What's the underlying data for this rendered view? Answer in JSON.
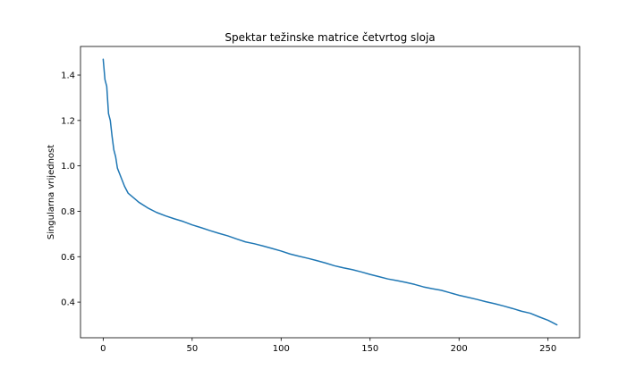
{
  "chart_data": {
    "type": "line",
    "title": "Spektar težinske matrice četvrtog sloja",
    "xlabel": "",
    "ylabel": "Singularna vrijednost",
    "xlim": [
      -12.75,
      267.75
    ],
    "ylim": [
      0.243,
      1.526
    ],
    "xticks": [
      0,
      50,
      100,
      150,
      200,
      250
    ],
    "yticks": [
      0.4,
      0.6,
      0.8,
      1.0,
      1.2,
      1.4
    ],
    "ytick_labels": [
      "0.4",
      "0.6",
      "0.8",
      "1.0",
      "1.2",
      "1.4"
    ],
    "grid": false,
    "color": "#1f77b4",
    "series": [
      {
        "x": [
          0,
          1,
          2,
          3,
          4,
          5,
          6,
          7,
          8,
          10,
          12,
          14,
          17,
          20,
          25,
          30,
          35,
          40,
          45,
          50,
          55,
          60,
          65,
          70,
          75,
          80,
          85,
          90,
          95,
          100,
          105,
          110,
          115,
          120,
          125,
          130,
          135,
          140,
          145,
          150,
          155,
          160,
          165,
          170,
          175,
          180,
          185,
          190,
          195,
          200,
          205,
          210,
          215,
          220,
          225,
          230,
          235,
          240,
          245,
          250,
          252,
          255
        ],
        "y": [
          1.47,
          1.38,
          1.35,
          1.23,
          1.2,
          1.13,
          1.07,
          1.04,
          0.99,
          0.95,
          0.91,
          0.88,
          0.86,
          0.84,
          0.815,
          0.795,
          0.78,
          0.767,
          0.755,
          0.74,
          0.728,
          0.715,
          0.703,
          0.692,
          0.678,
          0.665,
          0.657,
          0.647,
          0.636,
          0.625,
          0.612,
          0.602,
          0.593,
          0.583,
          0.572,
          0.56,
          0.551,
          0.543,
          0.533,
          0.522,
          0.512,
          0.502,
          0.495,
          0.487,
          0.478,
          0.467,
          0.459,
          0.452,
          0.441,
          0.43,
          0.421,
          0.412,
          0.402,
          0.393,
          0.383,
          0.372,
          0.36,
          0.351,
          0.335,
          0.32,
          0.312,
          0.3
        ]
      }
    ]
  }
}
